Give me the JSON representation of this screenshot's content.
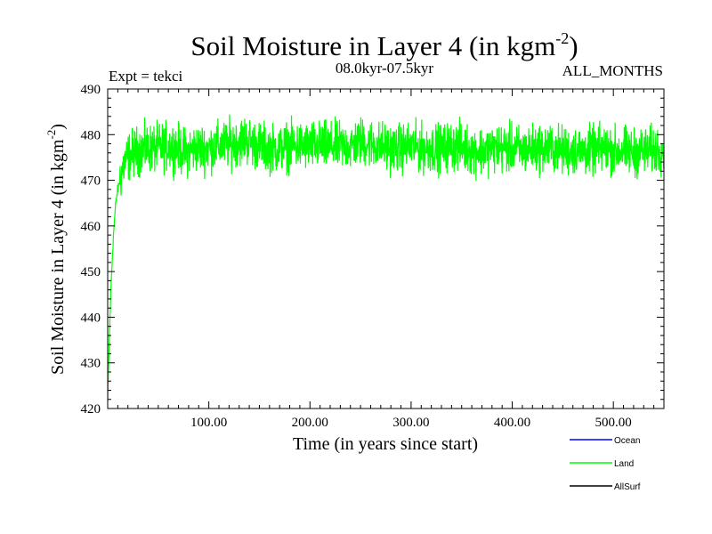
{
  "chart_data": {
    "type": "line",
    "title": "Soil Moisture in Layer 4 (in kgm",
    "title_sup": "-2",
    "title_close": ")",
    "subtitle_left": "Expt = tekci",
    "subtitle_center": "08.0kyr-07.5kyr",
    "subtitle_right": "ALL_MONTHS",
    "xlabel": "Time (in years since start)",
    "ylabel": "Soil Moisture in Layer 4 (in kgm",
    "ylabel_sup": "-2",
    "ylabel_close": ")",
    "xlim": [
      0,
      550
    ],
    "ylim": [
      420,
      490
    ],
    "xticks": [
      100,
      200,
      300,
      400,
      500
    ],
    "xtick_labels": [
      "100.00",
      "200.00",
      "300.00",
      "400.00",
      "500.00"
    ],
    "yticks": [
      420,
      430,
      440,
      450,
      460,
      470,
      480,
      490
    ],
    "ytick_labels": [
      "420",
      "430",
      "440",
      "450",
      "460",
      "470",
      "480",
      "490"
    ],
    "series": [
      {
        "name": "Ocean",
        "color": "#0000ff",
        "values": []
      },
      {
        "name": "Land",
        "color": "#00ff00",
        "x": [
          0,
          1,
          2,
          3,
          4,
          5,
          6,
          7,
          8,
          10,
          12,
          14,
          17,
          20,
          25,
          30,
          40,
          50,
          60,
          70,
          78,
          80,
          90,
          100,
          110,
          120,
          130,
          135,
          140,
          150,
          160,
          170,
          180,
          190,
          200,
          210,
          220,
          230,
          240,
          250,
          260,
          270,
          280,
          290,
          300,
          310,
          320,
          330,
          340,
          350,
          360,
          370,
          380,
          390,
          400,
          410,
          420,
          430,
          440,
          450,
          460,
          470,
          480,
          490,
          500,
          510,
          520,
          530,
          540,
          550
        ],
        "values": [
          422,
          430,
          438,
          445,
          450,
          455,
          459,
          462,
          465,
          468,
          470,
          472,
          474,
          475,
          476,
          476.5,
          477,
          477,
          477.5,
          477,
          476,
          476.5,
          477,
          477,
          477.5,
          478,
          478.5,
          479,
          478.5,
          477.5,
          477,
          477,
          477.5,
          477.5,
          477.5,
          477.5,
          477.5,
          477.5,
          477.5,
          478.5,
          478,
          477.5,
          477,
          477,
          477.5,
          477,
          477,
          477,
          477.5,
          477.5,
          476.5,
          476.5,
          477,
          477,
          477,
          476.5,
          477,
          477,
          477,
          476.5,
          476.5,
          476.5,
          476.5,
          477,
          476.5,
          476.5,
          476,
          476.5,
          476.5,
          477
        ]
      },
      {
        "name": "AllSurf",
        "color": "#000000",
        "values": []
      }
    ],
    "legend_position": "bottom-right"
  }
}
